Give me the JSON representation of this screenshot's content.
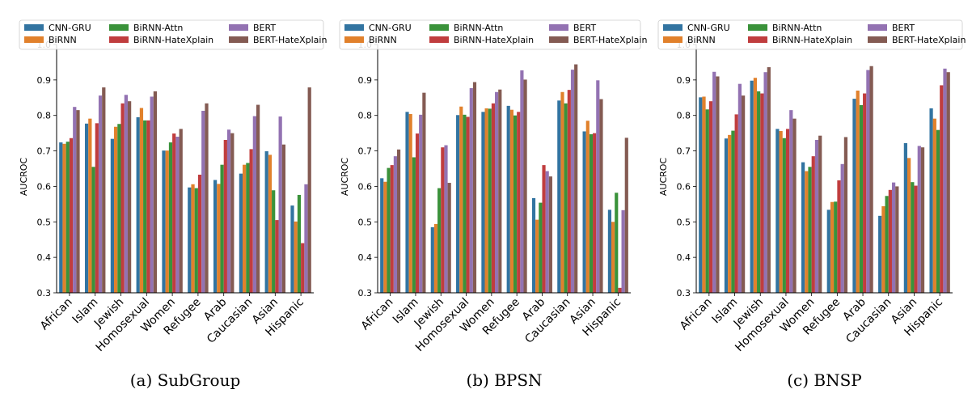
{
  "legend_labels": [
    "CNN-GRU",
    "BiRNN",
    "BiRNN-Attn",
    "BiRNN-HateXplain",
    "BERT",
    "BERT-HateXplain"
  ],
  "colors": [
    "#3274a1",
    "#e1812c",
    "#3a923a",
    "#c03d3e",
    "#9372b2",
    "#845b53"
  ],
  "chart_data": [
    {
      "type": "bar",
      "caption": "(a) SubGroup",
      "ylabel": "AUCROC",
      "ylim": [
        0.3,
        1.0
      ],
      "yticks": [
        "0.3",
        "0.4",
        "0.5",
        "0.6",
        "0.7",
        "0.8",
        "0.9",
        "1.0"
      ],
      "categories": [
        "African",
        "Islam",
        "Jewish",
        "Homosexual",
        "Women",
        "Refugee",
        "Arab",
        "Caucasian",
        "Asian",
        "Hispanic"
      ],
      "series": [
        {
          "name": "CNN-GRU",
          "values": [
            0.724,
            0.777,
            0.734,
            0.795,
            0.701,
            0.597,
            0.618,
            0.636,
            0.699,
            0.546
          ]
        },
        {
          "name": "BiRNN",
          "values": [
            0.72,
            0.791,
            0.768,
            0.821,
            0.701,
            0.606,
            0.607,
            0.661,
            0.689,
            0.501
          ]
        },
        {
          "name": "BiRNN-Attn",
          "values": [
            0.726,
            0.655,
            0.776,
            0.786,
            0.724,
            0.595,
            0.661,
            0.666,
            0.589,
            0.576
          ]
        },
        {
          "name": "BiRNN-HateXplain",
          "values": [
            0.736,
            0.778,
            0.834,
            0.786,
            0.749,
            0.633,
            0.731,
            0.705,
            0.505,
            0.44
          ]
        },
        {
          "name": "BERT",
          "values": [
            0.824,
            0.856,
            0.858,
            0.853,
            0.74,
            0.813,
            0.76,
            0.798,
            0.797,
            0.606
          ]
        },
        {
          "name": "BERT-HateXplain",
          "values": [
            0.815,
            0.879,
            0.84,
            0.868,
            0.762,
            0.834,
            0.75,
            0.83,
            0.718,
            0.879
          ]
        }
      ]
    },
    {
      "type": "bar",
      "caption": "(b) BPSN",
      "ylabel": "AUCROC",
      "ylim": [
        0.3,
        1.0
      ],
      "yticks": [
        "0.3",
        "0.4",
        "0.5",
        "0.6",
        "0.7",
        "0.8",
        "0.9",
        "1.0"
      ],
      "categories": [
        "African",
        "Islam",
        "Jewish",
        "Homosexual",
        "Women",
        "Refugee",
        "Arab",
        "Caucasian",
        "Asian",
        "Hispanic"
      ],
      "series": [
        {
          "name": "CNN-GRU",
          "values": [
            0.623,
            0.81,
            0.485,
            0.801,
            0.81,
            0.827,
            0.567,
            0.842,
            0.755,
            0.534
          ]
        },
        {
          "name": "BiRNN",
          "values": [
            0.613,
            0.804,
            0.494,
            0.825,
            0.82,
            0.816,
            0.506,
            0.866,
            0.785,
            0.5
          ]
        },
        {
          "name": "BiRNN-Attn",
          "values": [
            0.652,
            0.682,
            0.595,
            0.802,
            0.819,
            0.8,
            0.554,
            0.834,
            0.747,
            0.582
          ]
        },
        {
          "name": "BiRNN-HateXplain",
          "values": [
            0.66,
            0.749,
            0.71,
            0.796,
            0.834,
            0.81,
            0.66,
            0.872,
            0.75,
            0.314
          ]
        },
        {
          "name": "BERT",
          "values": [
            0.685,
            0.802,
            0.716,
            0.877,
            0.866,
            0.927,
            0.643,
            0.929,
            0.899,
            0.533
          ]
        },
        {
          "name": "BERT-HateXplain",
          "values": [
            0.704,
            0.864,
            0.61,
            0.894,
            0.873,
            0.901,
            0.628,
            0.944,
            0.846,
            0.737
          ]
        }
      ]
    },
    {
      "type": "bar",
      "caption": "(c) BNSP",
      "ylabel": "AUCROC",
      "ylim": [
        0.3,
        1.0
      ],
      "yticks": [
        "0.3",
        "0.4",
        "0.5",
        "0.6",
        "0.7",
        "0.8",
        "0.9",
        "1.0"
      ],
      "categories": [
        "African",
        "Islam",
        "Jewish",
        "Homosexual",
        "Women",
        "Refugee",
        "Arab",
        "Caucasian",
        "Asian",
        "Hispanic"
      ],
      "series": [
        {
          "name": "CNN-GRU",
          "values": [
            0.851,
            0.735,
            0.898,
            0.762,
            0.668,
            0.534,
            0.847,
            0.517,
            0.722,
            0.82
          ]
        },
        {
          "name": "BiRNN",
          "values": [
            0.853,
            0.745,
            0.906,
            0.756,
            0.643,
            0.556,
            0.87,
            0.544,
            0.68,
            0.791
          ]
        },
        {
          "name": "BiRNN-Attn",
          "values": [
            0.817,
            0.757,
            0.868,
            0.736,
            0.655,
            0.557,
            0.829,
            0.573,
            0.612,
            0.759
          ]
        },
        {
          "name": "BiRNN-HateXplain",
          "values": [
            0.84,
            0.803,
            0.862,
            0.762,
            0.685,
            0.617,
            0.862,
            0.59,
            0.602,
            0.885
          ]
        },
        {
          "name": "BERT",
          "values": [
            0.923,
            0.889,
            0.922,
            0.815,
            0.731,
            0.663,
            0.928,
            0.611,
            0.714,
            0.932
          ]
        },
        {
          "name": "BERT-HateXplain",
          "values": [
            0.91,
            0.856,
            0.936,
            0.791,
            0.743,
            0.739,
            0.939,
            0.6,
            0.71,
            0.922
          ]
        }
      ]
    }
  ]
}
